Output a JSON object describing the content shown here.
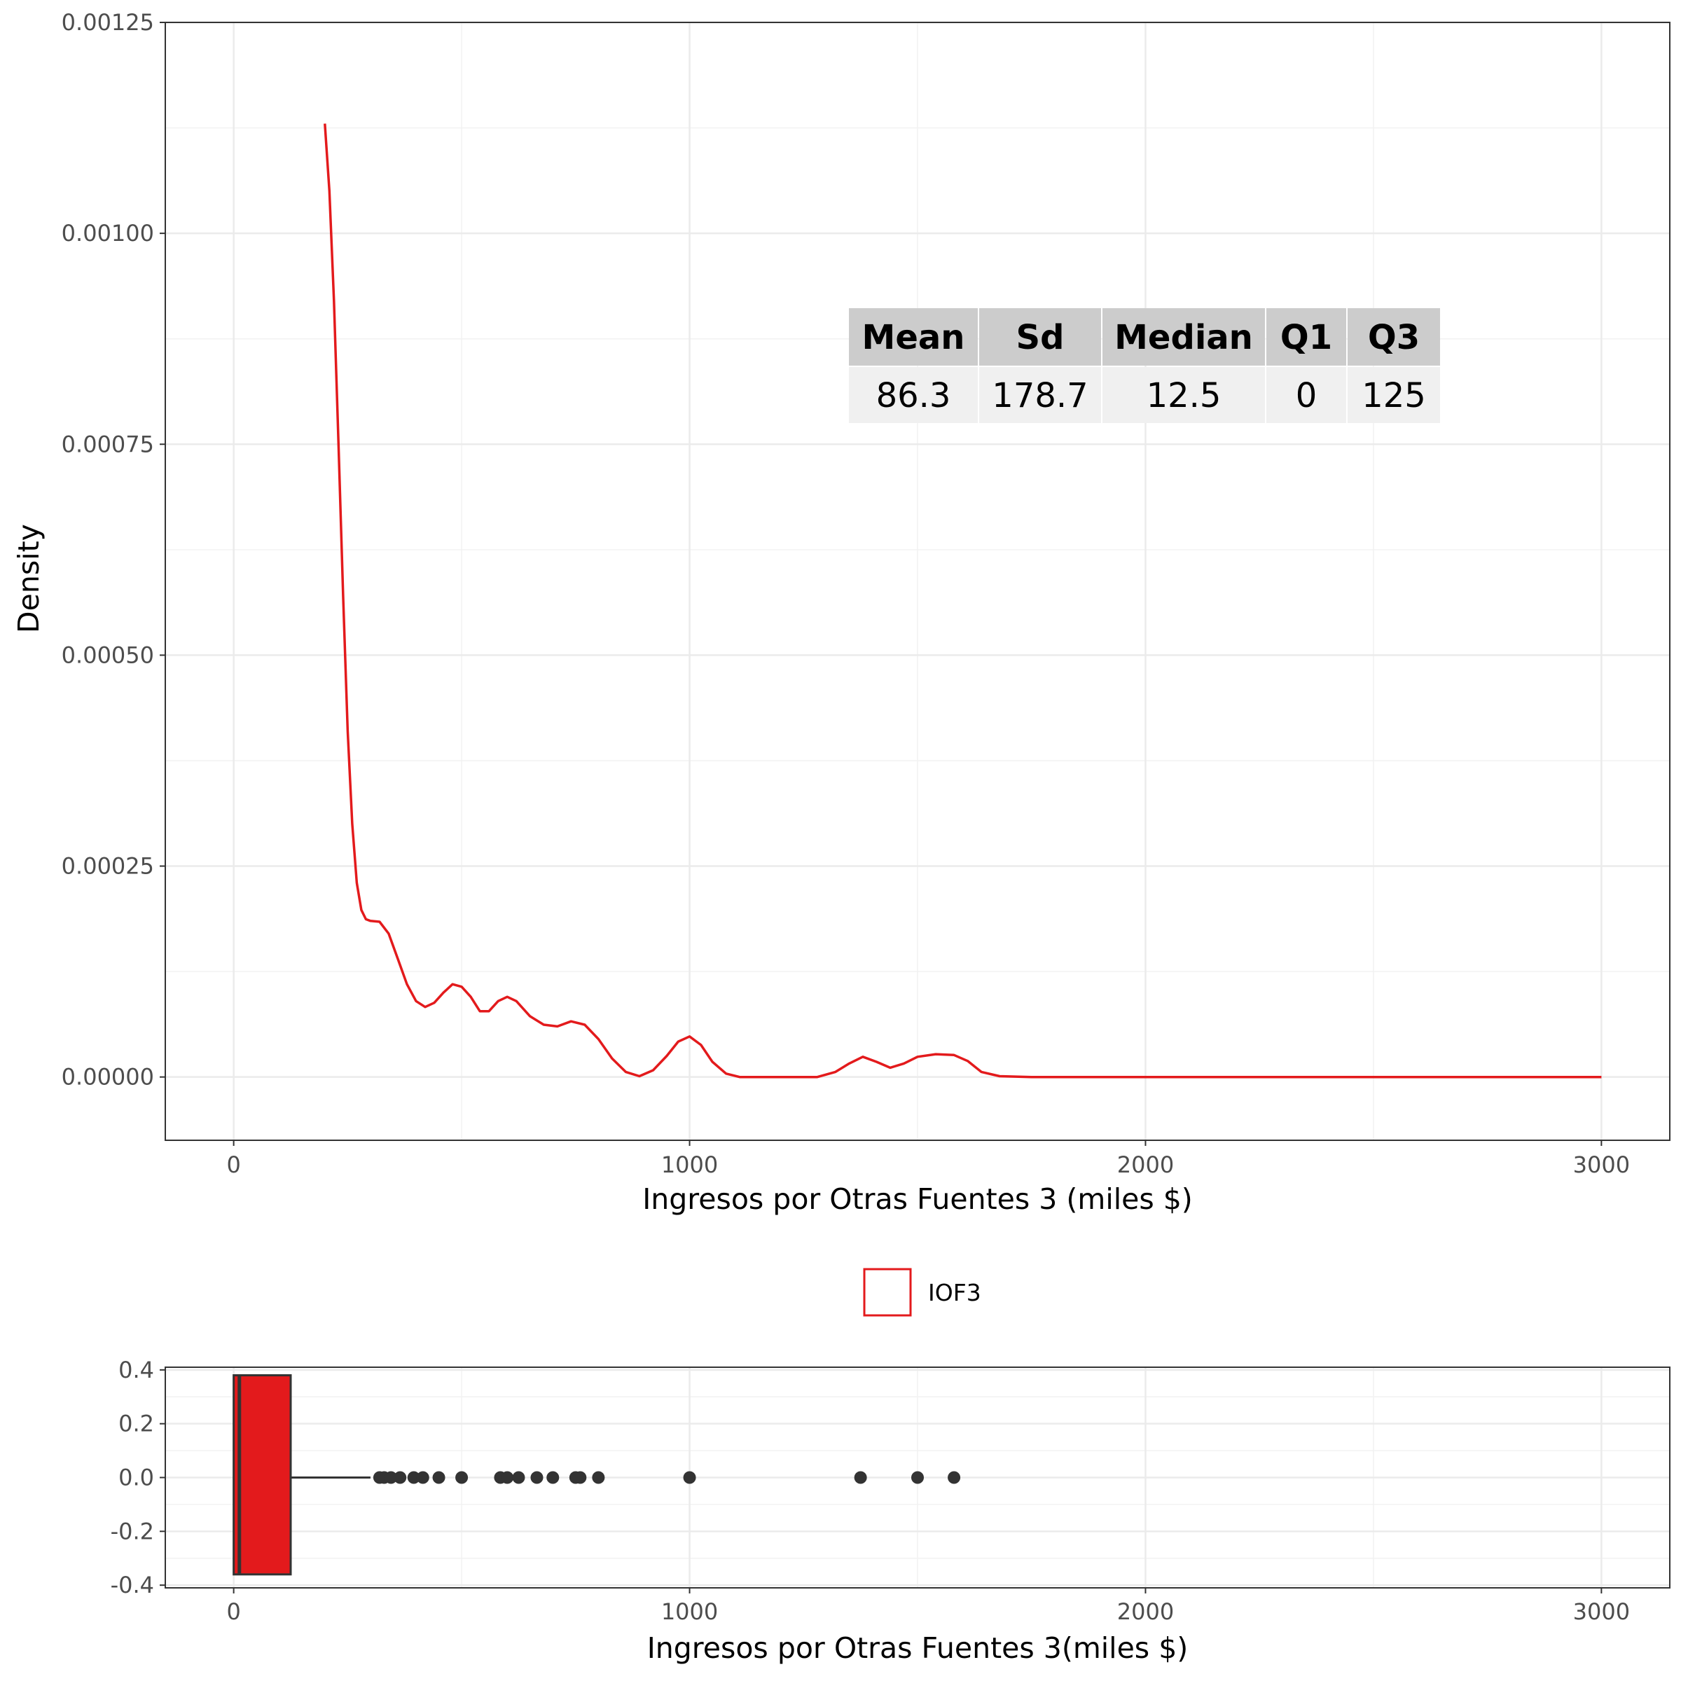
{
  "colors": {
    "accent": "#E31A1C",
    "grid_major": "#EBEBEB",
    "grid_minor": "#F2F2F2",
    "panel_border": "#333333",
    "table_header": "#CCCCCC",
    "table_body": "#F0F0F0",
    "outlier": "#333333"
  },
  "chart_data": [
    {
      "type": "line",
      "subtype": "density",
      "xlabel": "Ingresos por Otras Fuentes 3 (miles $)",
      "ylabel": "Density",
      "xlim": [
        -150,
        3150
      ],
      "ylim": [
        -7.5e-05,
        0.00125
      ],
      "x_ticks": [
        "0",
        "1000",
        "2000",
        "3000"
      ],
      "y_ticks": [
        "0.00000",
        "0.00025",
        "0.00050",
        "0.00075",
        "0.00100",
        "0.00125"
      ],
      "grid": true,
      "legend": {
        "position": "bottom",
        "entries": [
          "IOF3"
        ]
      },
      "series": [
        {
          "name": "IOF3",
          "color": "#E31A1C",
          "points": [
            [
              200,
              0.00113
            ],
            [
              210,
              0.00105
            ],
            [
              220,
              0.00092
            ],
            [
              230,
              0.00075
            ],
            [
              240,
              0.00057
            ],
            [
              250,
              0.00041
            ],
            [
              260,
              0.0003
            ],
            [
              270,
              0.00023
            ],
            [
              280,
              0.000198
            ],
            [
              290,
              0.000187
            ],
            [
              300,
              0.000185
            ],
            [
              320,
              0.000184
            ],
            [
              340,
              0.00017
            ],
            [
              360,
              0.00014
            ],
            [
              380,
              0.00011
            ],
            [
              400,
              9e-05
            ],
            [
              420,
              8.3e-05
            ],
            [
              440,
              8.8e-05
            ],
            [
              460,
              0.0001
            ],
            [
              480,
              0.00011
            ],
            [
              500,
              0.000107
            ],
            [
              520,
              9.5e-05
            ],
            [
              540,
              7.8e-05
            ],
            [
              560,
              7.8e-05
            ],
            [
              580,
              9e-05
            ],
            [
              600,
              9.5e-05
            ],
            [
              620,
              9e-05
            ],
            [
              650,
              7.2e-05
            ],
            [
              680,
              6.2e-05
            ],
            [
              710,
              6e-05
            ],
            [
              740,
              6.6e-05
            ],
            [
              770,
              6.2e-05
            ],
            [
              800,
              4.5e-05
            ],
            [
              830,
              2.2e-05
            ],
            [
              860,
              6e-06
            ],
            [
              890,
              1e-06
            ],
            [
              920,
              8e-06
            ],
            [
              950,
              2.5e-05
            ],
            [
              975,
              4.2e-05
            ],
            [
              1000,
              4.8e-05
            ],
            [
              1025,
              3.8e-05
            ],
            [
              1050,
              1.8e-05
            ],
            [
              1080,
              4e-06
            ],
            [
              1110,
              0.0
            ],
            [
              1200,
              0.0
            ],
            [
              1280,
              0.0
            ],
            [
              1320,
              6e-06
            ],
            [
              1350,
              1.6e-05
            ],
            [
              1380,
              2.4e-05
            ],
            [
              1410,
              1.8e-05
            ],
            [
              1440,
              1.1e-05
            ],
            [
              1470,
              1.6e-05
            ],
            [
              1500,
              2.4e-05
            ],
            [
              1540,
              2.7e-05
            ],
            [
              1580,
              2.6e-05
            ],
            [
              1610,
              1.9e-05
            ],
            [
              1640,
              6e-06
            ],
            [
              1680,
              1e-06
            ],
            [
              1750,
              0.0
            ],
            [
              2000,
              0.0
            ],
            [
              2500,
              0.0
            ],
            [
              3000,
              0.0
            ]
          ]
        }
      ],
      "stats_table": {
        "headers": [
          "Mean",
          "Sd",
          "Median",
          "Q1",
          "Q3"
        ],
        "values": [
          "86.3",
          "178.7",
          "12.5",
          "0",
          "125"
        ]
      }
    },
    {
      "type": "boxplot",
      "xlabel": "Ingresos por Otras Fuentes 3(miles $)",
      "ylabel": "",
      "xlim": [
        -150,
        3150
      ],
      "ylim": [
        -0.41,
        0.41
      ],
      "x_ticks": [
        "0",
        "1000",
        "2000",
        "3000"
      ],
      "y_ticks": [
        "-0.4",
        "-0.2",
        "0.0",
        "0.2",
        "0.4"
      ],
      "grid": true,
      "box": {
        "min": 0,
        "q1": 0,
        "median": 12.5,
        "q3": 125,
        "whisker_high": 300,
        "y_low": -0.36,
        "y_high": 0.38,
        "fill": "#E31A1C"
      },
      "outliers": [
        320,
        330,
        345,
        365,
        395,
        415,
        450,
        500,
        585,
        600,
        625,
        665,
        700,
        750,
        760,
        800,
        1000,
        1375,
        1500,
        1580
      ]
    }
  ]
}
